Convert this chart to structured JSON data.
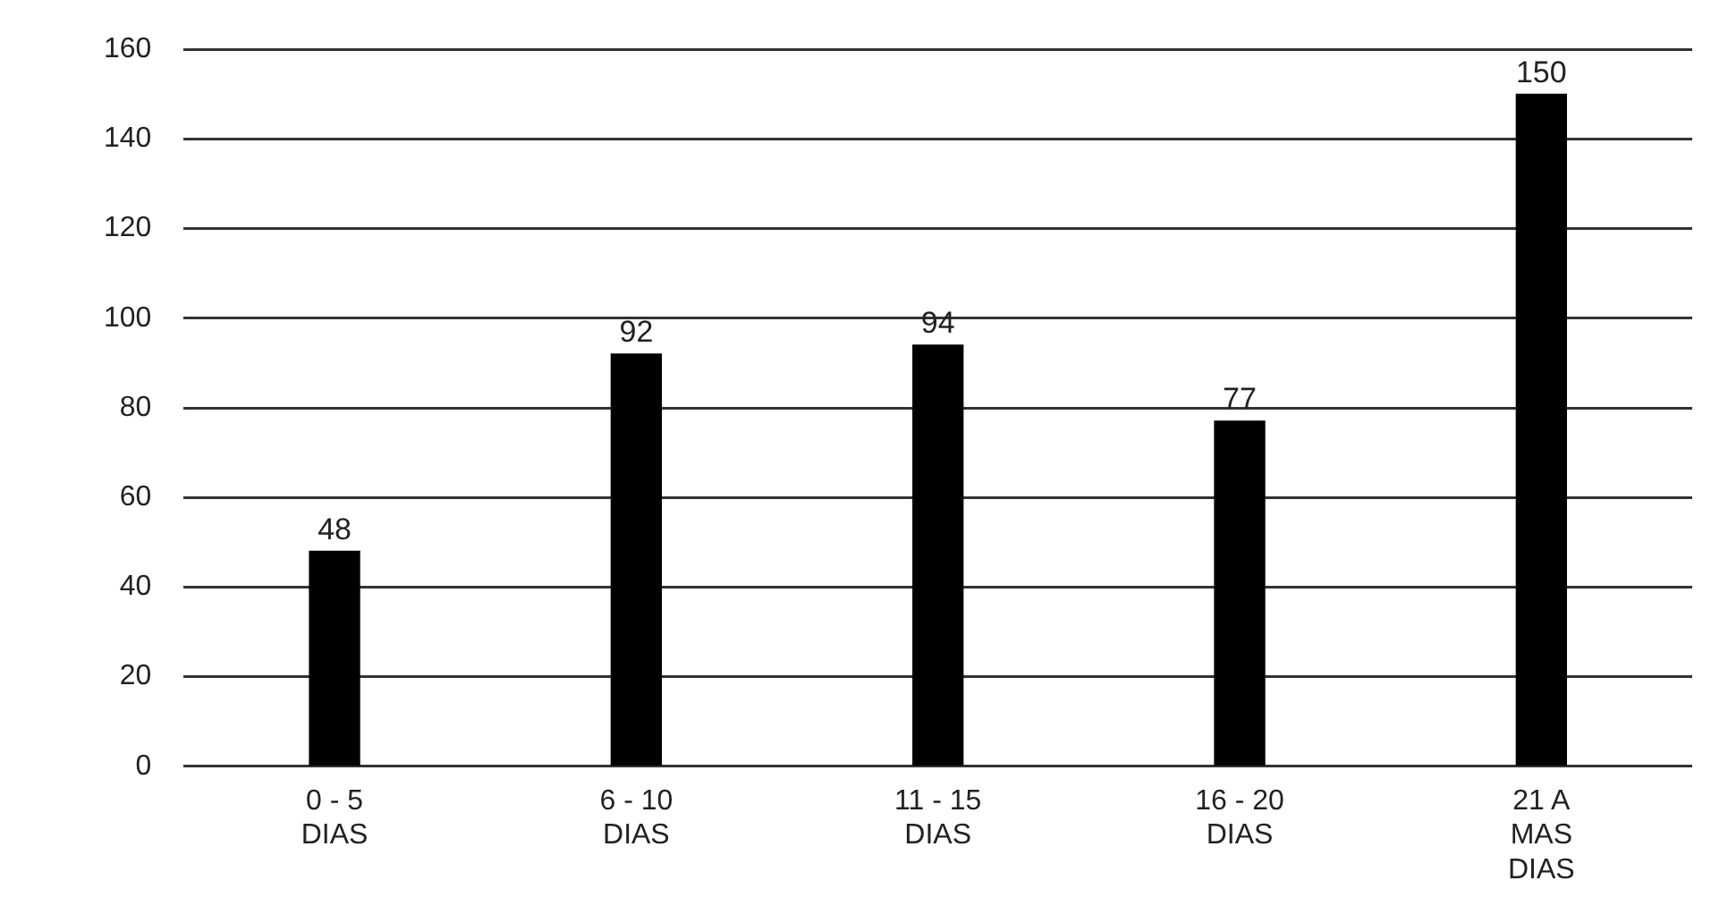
{
  "chart_data": {
    "type": "bar",
    "categories": [
      "0 - 5\nDIAS",
      "6 - 10\nDIAS",
      "11 - 15\nDIAS",
      "16 - 20\nDIAS",
      "21 A\nMAS\nDIAS"
    ],
    "values": [
      48,
      92,
      94,
      77,
      150
    ],
    "color": "#000000",
    "ylim": [
      0,
      160
    ],
    "yticks": [
      0,
      20,
      40,
      60,
      80,
      100,
      120,
      140,
      160
    ],
    "grid": "y",
    "data_labels": true
  }
}
